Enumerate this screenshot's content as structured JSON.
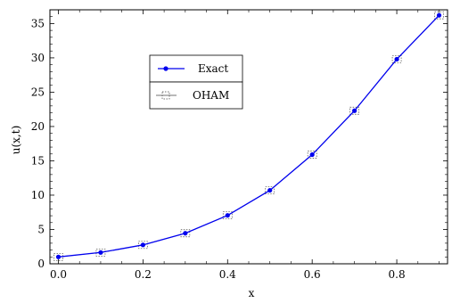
{
  "chart_data": {
    "type": "line",
    "xlabel": "x",
    "ylabel": "u(x,t)",
    "xlim": [
      -0.02,
      0.92
    ],
    "ylim": [
      0,
      37
    ],
    "x_ticks": [
      0.0,
      0.2,
      0.4,
      0.6,
      0.8
    ],
    "x_tick_labels": [
      "0.0",
      "0.2",
      "0.4",
      "0.6",
      "0.8"
    ],
    "x_minor_ticks": [
      0.05,
      0.1,
      0.15,
      0.25,
      0.3,
      0.35,
      0.45,
      0.5,
      0.55,
      0.65,
      0.7,
      0.75,
      0.85,
      0.9
    ],
    "y_ticks": [
      0,
      5,
      10,
      15,
      20,
      25,
      30,
      35
    ],
    "y_tick_labels": [
      "0",
      "5",
      "10",
      "15",
      "20",
      "25",
      "30",
      "35"
    ],
    "y_minor_ticks": [
      1,
      2,
      3,
      4,
      6,
      7,
      8,
      9,
      11,
      12,
      13,
      14,
      16,
      17,
      18,
      19,
      21,
      22,
      23,
      24,
      26,
      27,
      28,
      29,
      31,
      32,
      33,
      34,
      36
    ],
    "grid": false,
    "legend_position": "upper-left-inside",
    "x": [
      0.0,
      0.1,
      0.2,
      0.3,
      0.4,
      0.5,
      0.6,
      0.7,
      0.8,
      0.9
    ],
    "series": [
      {
        "name": "Exact",
        "style": "line-with-dot-markers",
        "color": "#0000ee",
        "values": [
          1.0,
          1.65,
          2.75,
          4.45,
          7.05,
          10.7,
          15.9,
          22.3,
          29.8,
          36.2
        ]
      },
      {
        "name": "OHAM",
        "style": "dashed-box-markers",
        "color": "#444444",
        "values": [
          1.0,
          1.65,
          2.75,
          4.45,
          7.05,
          10.7,
          15.9,
          22.3,
          29.8,
          36.2
        ]
      }
    ]
  }
}
